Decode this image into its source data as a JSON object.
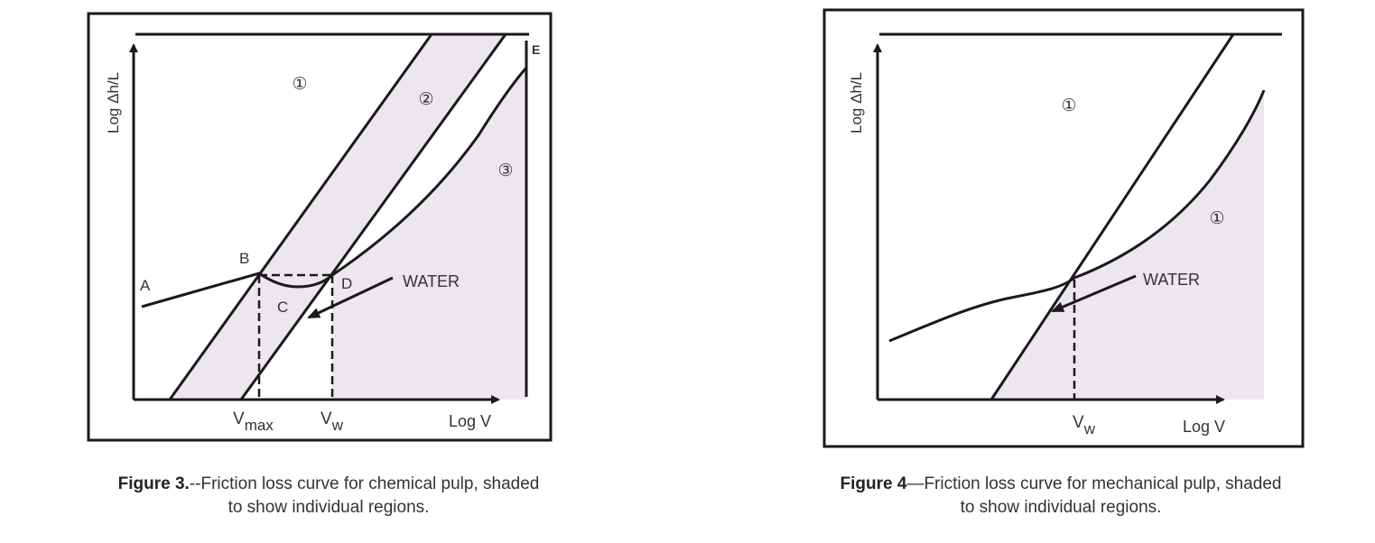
{
  "colors": {
    "shade": "#ece6ef",
    "ink": "#1a1a1a",
    "text": "#333333"
  },
  "figure3": {
    "y_label": "Log Δh/L",
    "x_label": "Log V",
    "region_1": "①",
    "region_2": "②",
    "region_3": "③",
    "point_a": "A",
    "point_b": "B",
    "point_c": "C",
    "point_d": "D",
    "point_e": "E",
    "water_label": "WATER",
    "vmax_main": "V",
    "vmax_sub": "max",
    "vw_main": "V",
    "vw_sub": "w",
    "caption_bold": "Figure 3.",
    "caption_rest": "--Friction loss curve for chemical pulp, shaded",
    "caption_line2": "to show individual regions."
  },
  "figure4": {
    "y_label": "Log Δh/L",
    "x_label": "Log V",
    "region_1a": "①",
    "region_1b": "①",
    "water_label": "WATER",
    "vw_main": "V",
    "vw_sub": "w",
    "caption_bold": "Figure 4",
    "caption_rest": "—Friction loss curve for mechanical pulp, shaded",
    "caption_line2": "to show individual regions."
  }
}
